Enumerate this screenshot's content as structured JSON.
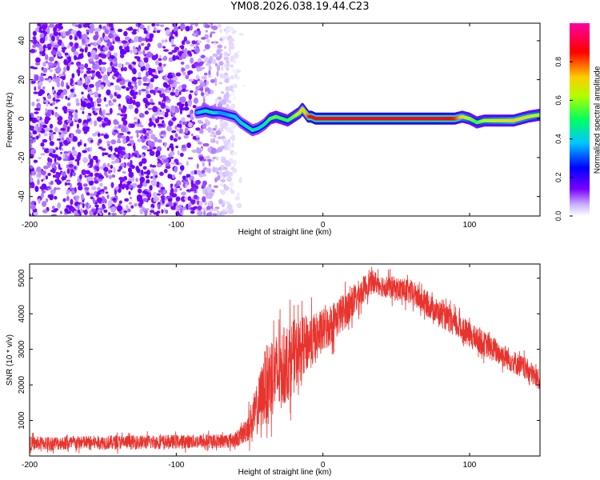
{
  "title": "YM08.2026.038.19.44.C23",
  "colors": {
    "accent": "#e8342e",
    "axis": "#000000",
    "colorbar": [
      "#7a00ff",
      "#0000ff",
      "#00c8ff",
      "#00ff60",
      "#b0ff00",
      "#ffcc00",
      "#ff0000",
      "#ff00a0"
    ]
  },
  "chart_data": [
    {
      "type": "heatmap",
      "xlabel": "Height of straight line (km)",
      "ylabel": "Frequency (Hz)",
      "xlim": [
        -200,
        148
      ],
      "ylim": [
        -50,
        49
      ],
      "xticks": [
        -200,
        -100,
        0,
        100
      ],
      "xtick_labels": [
        "-200",
        "-100",
        "0",
        "100"
      ],
      "yticks": [
        40,
        20,
        0,
        -20,
        -40
      ],
      "ytick_labels": [
        "40",
        "20",
        "0",
        "-20",
        "-40"
      ],
      "colorbar": {
        "label": "Normalized spectral amplitude",
        "range": [
          0,
          1
        ],
        "ticks": [
          0,
          0.2,
          0.4,
          0.6,
          0.8
        ],
        "tick_labels": [
          "0.0",
          "0.2",
          "0.4",
          "0.6",
          "0.8"
        ]
      },
      "noise_region_x": [
        -200,
        -60
      ],
      "ridge": {
        "x": [
          -86,
          -80,
          -75,
          -70,
          -65,
          -60,
          -56,
          -52,
          -48,
          -44,
          -40,
          -36,
          -32,
          -28,
          -24,
          -20,
          -16,
          -14,
          -12,
          -10,
          -8,
          -5,
          0,
          20,
          40,
          60,
          80,
          90,
          95,
          100,
          105,
          110,
          120,
          130,
          140,
          148
        ],
        "y": [
          3,
          4,
          3,
          3,
          2,
          1,
          -2,
          -4,
          -6,
          -5,
          -3,
          0,
          1,
          0,
          -1,
          1,
          3,
          5,
          3,
          1,
          1,
          0,
          0,
          0,
          0,
          0,
          0,
          0,
          1,
          0,
          -2,
          -1,
          -1,
          -1,
          1,
          2
        ],
        "peak_amplitude": [
          0.4,
          0.5,
          0.5,
          0.4,
          0.4,
          0.45,
          0.45,
          0.5,
          0.5,
          0.5,
          0.5,
          0.6,
          0.65,
          0.6,
          0.6,
          0.65,
          0.75,
          0.8,
          0.8,
          0.9,
          1,
          1,
          1,
          1,
          1,
          1,
          1,
          0.95,
          0.8,
          0.7,
          0.6,
          0.7,
          0.75,
          0.8,
          0.75,
          0.7
        ]
      }
    },
    {
      "type": "line",
      "xlabel": "Height of straight line (km)",
      "ylabel": "SNR (10 * v/v)",
      "xlim": [
        -200,
        148
      ],
      "ylim": [
        0,
        5400
      ],
      "xticks": [
        -200,
        -100,
        0,
        100
      ],
      "xtick_labels": [
        "-200",
        "-100",
        "0",
        "100"
      ],
      "yticks": [
        1000,
        2000,
        3000,
        4000,
        5000
      ],
      "ytick_labels": [
        "1000",
        "2000",
        "3000",
        "4000",
        "5000"
      ],
      "color": "#e8342e",
      "envelope": {
        "x": [
          -200,
          -150,
          -100,
          -70,
          -60,
          -55,
          -50,
          -45,
          -40,
          -35,
          -30,
          -25,
          -20,
          -15,
          -10,
          -5,
          0,
          10,
          20,
          30,
          35,
          40,
          50,
          60,
          70,
          80,
          100,
          120,
          140,
          148
        ],
        "mean": [
          350,
          380,
          400,
          420,
          450,
          600,
          900,
          1300,
          1900,
          2300,
          2300,
          2600,
          2800,
          3000,
          3200,
          3300,
          3500,
          3900,
          4300,
          4800,
          4900,
          4800,
          4700,
          4600,
          4300,
          4000,
          3400,
          2900,
          2400,
          2100
        ],
        "spread": [
          250,
          250,
          250,
          250,
          280,
          350,
          600,
          900,
          1300,
          1500,
          1400,
          1400,
          1300,
          1100,
          1000,
          900,
          800,
          700,
          600,
          450,
          400,
          400,
          420,
          450,
          450,
          450,
          450,
          430,
          400,
          380
        ]
      }
    }
  ]
}
